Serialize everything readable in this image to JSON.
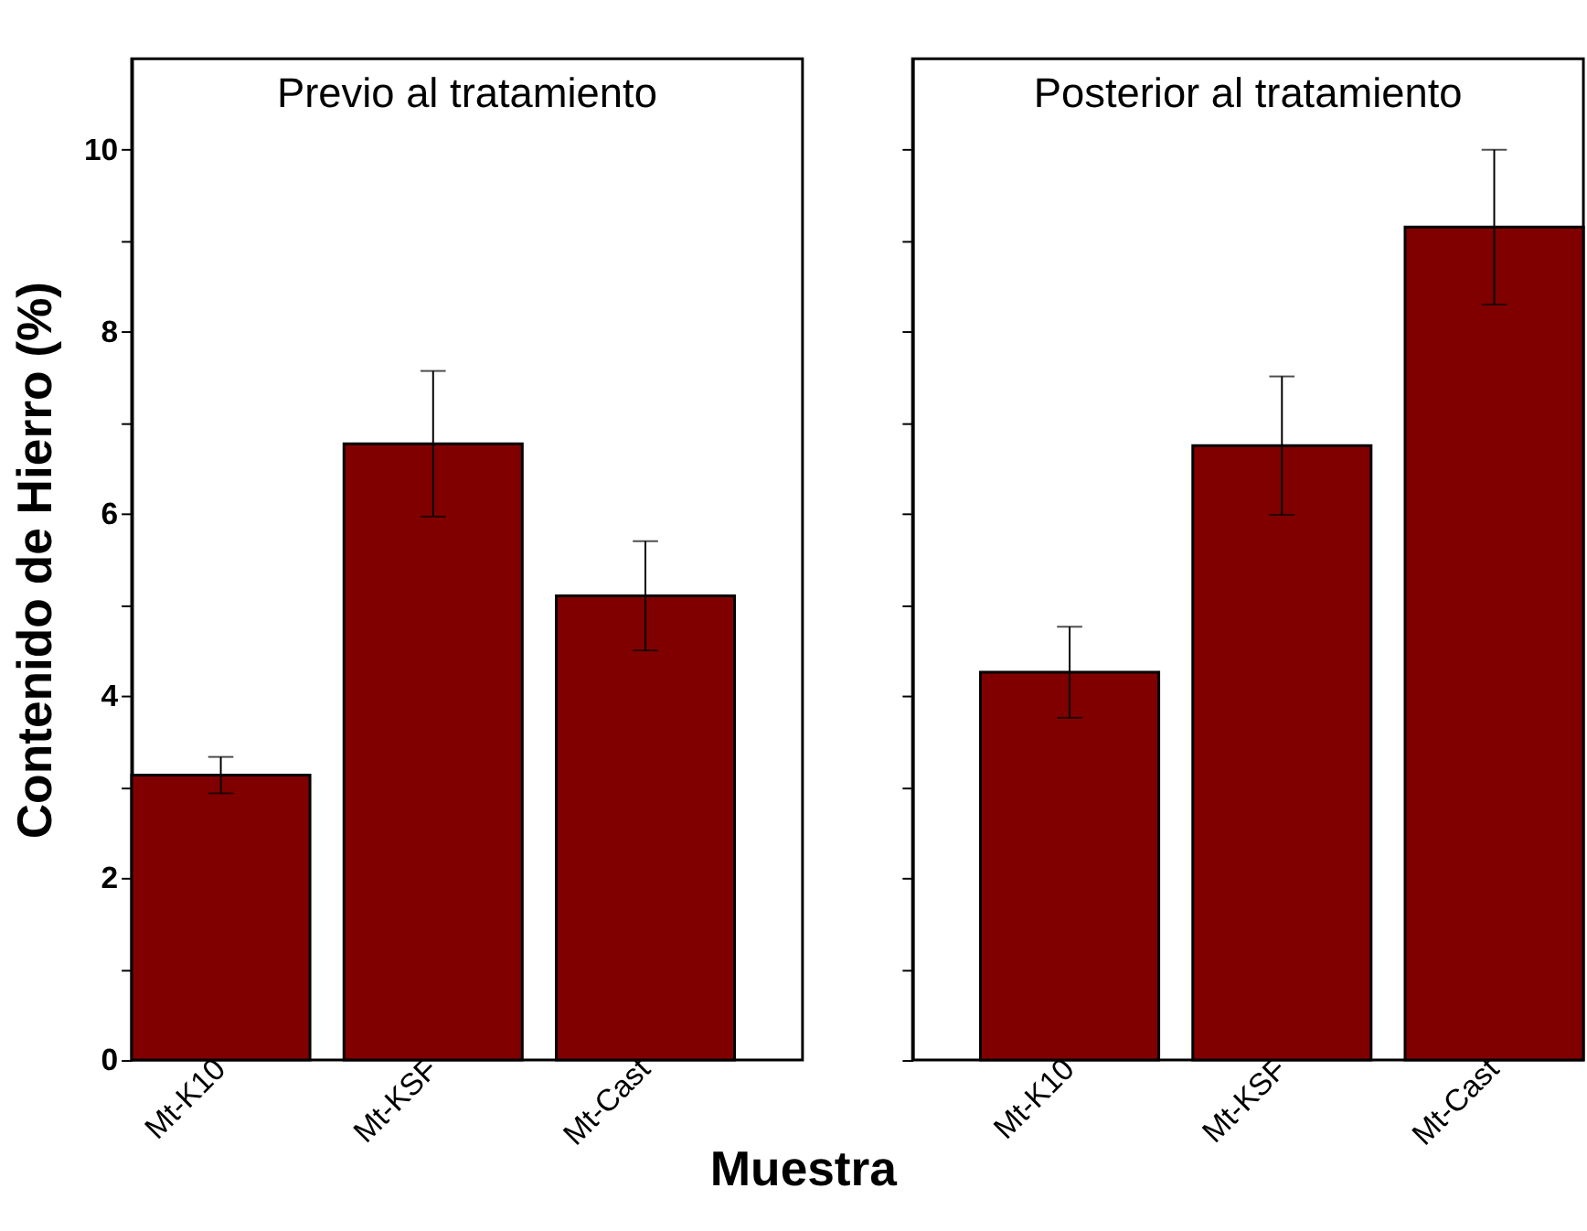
{
  "chart_data": [
    {
      "type": "bar",
      "title": "Previo al tratamiento",
      "xlabel": "Muestra",
      "ylabel": "Contenido de Hierro (%)",
      "categories": [
        "Mt-K10",
        "Mt-KSF",
        "Mt-Cast"
      ],
      "series": [
        {
          "color": "#800000",
          "values": [
            3.13,
            6.77,
            5.1
          ],
          "errors": [
            0.2,
            0.8,
            0.6
          ]
        }
      ],
      "ylim": [
        0,
        11
      ],
      "yticks": [
        0,
        {
          "value": 1,
          "label": null
        },
        2,
        {
          "value": 3,
          "label": null
        },
        4,
        {
          "value": 5,
          "label": null
        },
        6,
        {
          "value": 7,
          "label": null
        },
        8,
        {
          "value": 9,
          "label": null
        },
        10
      ],
      "grid": false
    },
    {
      "type": "bar",
      "title": "Posterior al tratamiento",
      "categories": [
        "Mt-K10",
        "Mt-KSF",
        "Mt-Cast"
      ],
      "series": [
        {
          "color": "#800000",
          "values": [
            4.26,
            6.75,
            9.15
          ],
          "errors": [
            0.5,
            0.76,
            0.85
          ]
        }
      ],
      "ylim": [
        0,
        11
      ],
      "yticks": [
        0,
        {
          "value": 1,
          "label": null
        },
        2,
        {
          "value": 3,
          "label": null
        },
        4,
        {
          "value": 5,
          "label": null
        },
        6,
        {
          "value": 7,
          "label": null
        },
        8,
        {
          "value": 9,
          "label": null
        },
        10
      ],
      "tick_labels": "x",
      "grid": false
    }
  ]
}
